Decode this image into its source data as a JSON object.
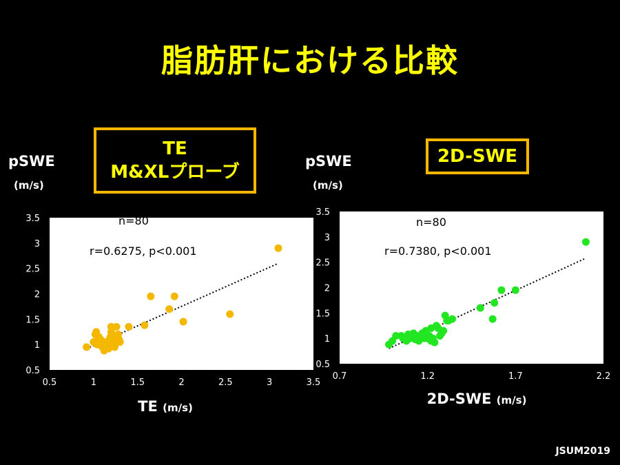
{
  "title": "脂肪肝における比較",
  "footer": "JSUM2019",
  "left_box": {
    "line1": "TE",
    "line2": "M&XLプローブ"
  },
  "right_box": {
    "label": "2D-SWE"
  },
  "colors": {
    "title": "#ffff00",
    "box_border": "#f5b800",
    "left_points": "#f5b800",
    "right_points": "#22e622"
  },
  "chart_data": [
    {
      "type": "scatter",
      "title": "",
      "ylabel": "pSWE",
      "yunit": "(m/s)",
      "xlabel": "TE",
      "xunit": "(m/s)",
      "xlim": [
        0.5,
        3.5
      ],
      "ylim": [
        0.5,
        3.5
      ],
      "xticks": [
        "0.5",
        "1",
        "1.5",
        "2",
        "2.5",
        "3",
        "3.5"
      ],
      "yticks": [
        "0.5",
        "1",
        "1.5",
        "2",
        "2.5",
        "3",
        "3.5"
      ],
      "annotations": [
        "n=80",
        "r=0.6275, p<0.001"
      ],
      "trendline": {
        "style": "dotted",
        "x": [
          0.92,
          3.1
        ],
        "y": [
          0.92,
          2.6
        ]
      },
      "series": [
        {
          "x": [
            0.92,
            1.0,
            1.02,
            1.05,
            1.08,
            1.1,
            1.12,
            1.14,
            1.15,
            1.18,
            1.2,
            1.22,
            1.25,
            1.28,
            1.03,
            1.07,
            1.13,
            1.17,
            1.21,
            1.26,
            1.29,
            1.11,
            1.19,
            1.24,
            1.16,
            1.09,
            1.3,
            1.27,
            1.23,
            1.06,
            1.4,
            1.58,
            1.65,
            1.86,
            1.92,
            2.02,
            2.55,
            3.1,
            1.01,
            1.04,
            1.28,
            1.2
          ],
          "y": [
            0.95,
            1.05,
            1.2,
            1.0,
            1.1,
            0.95,
            0.88,
            1.05,
            1.0,
            1.1,
            1.25,
            1.0,
            1.15,
            1.05,
            1.25,
            1.05,
            0.98,
            0.92,
            1.05,
            1.35,
            1.1,
            1.0,
            1.15,
            0.95,
            1.05,
            0.98,
            1.05,
            1.1,
            1.0,
            1.15,
            1.35,
            1.38,
            1.95,
            1.7,
            1.95,
            1.45,
            1.6,
            2.9,
            1.05,
            1.0,
            1.2,
            1.35
          ]
        }
      ]
    },
    {
      "type": "scatter",
      "title": "",
      "ylabel": "pSWE",
      "yunit": "(m/s)",
      "xlabel": "2D-SWE",
      "xunit": "(m/s)",
      "xlim": [
        0.7,
        2.2
      ],
      "ylim": [
        0.5,
        3.5
      ],
      "xticks": [
        "0.7",
        "1.2",
        "1.7",
        "2.2"
      ],
      "yticks": [
        "0.5",
        "1",
        "1.5",
        "2",
        "2.5",
        "3",
        "3.5"
      ],
      "annotations": [
        "n=80",
        "r=0.7380, p<0.001"
      ],
      "trendline": {
        "style": "dotted",
        "x": [
          0.98,
          2.1
        ],
        "y": [
          0.8,
          2.58
        ]
      },
      "series": [
        {
          "x": [
            0.98,
            1.0,
            1.02,
            1.05,
            1.08,
            1.1,
            1.12,
            1.14,
            1.15,
            1.17,
            1.18,
            1.2,
            1.22,
            1.24,
            1.25,
            1.11,
            1.13,
            1.16,
            1.19,
            1.21,
            1.23,
            1.26,
            1.28,
            1.3,
            1.32,
            1.34,
            1.09,
            1.06,
            1.27,
            1.29,
            1.31,
            1.22,
            1.18,
            1.14,
            1.5,
            1.57,
            1.58,
            1.62,
            1.7,
            2.1
          ],
          "y": [
            0.88,
            0.95,
            1.05,
            1.05,
            0.95,
            1.0,
            1.1,
            1.05,
            0.95,
            1.1,
            1.0,
            1.0,
            0.95,
            0.92,
            1.25,
            1.05,
            0.98,
            1.02,
            1.15,
            1.05,
            1.0,
            1.2,
            1.1,
            1.45,
            1.35,
            1.38,
            1.08,
            1.0,
            1.05,
            1.15,
            1.35,
            1.2,
            1.1,
            1.0,
            1.6,
            1.38,
            1.7,
            1.95,
            1.95,
            2.9
          ]
        }
      ]
    }
  ]
}
